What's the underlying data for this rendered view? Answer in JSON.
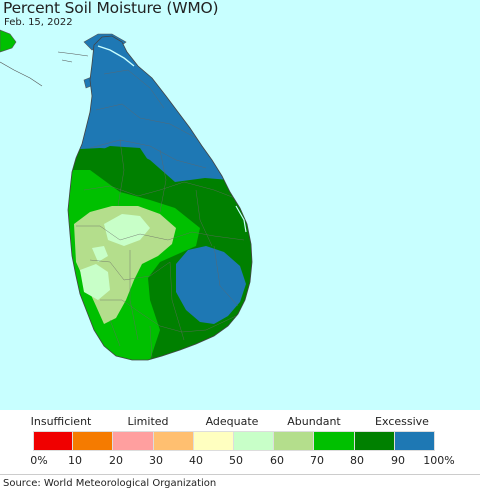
{
  "map": {
    "title": "Percent Soil Moisture (WMO)",
    "date": "Feb. 15, 2022",
    "sea_color": "#c8ffff",
    "outline_color": "#555555"
  },
  "legend": {
    "categories": [
      "Insufficient",
      "Limited",
      "Adequate",
      "Abundant",
      "Excessive"
    ],
    "ticks": [
      "0%",
      "10",
      "20",
      "30",
      "40",
      "50",
      "60",
      "70",
      "80",
      "90",
      "100%"
    ],
    "colors": [
      "#f00000",
      "#f57b00",
      "#ff9f9f",
      "#ffbf70",
      "#ffffc0",
      "#c8ffc8",
      "#b4de8c",
      "#00c000",
      "#008000",
      "#1e78b4"
    ]
  },
  "footer": {
    "source": "Source: World Meteorological Organization"
  }
}
